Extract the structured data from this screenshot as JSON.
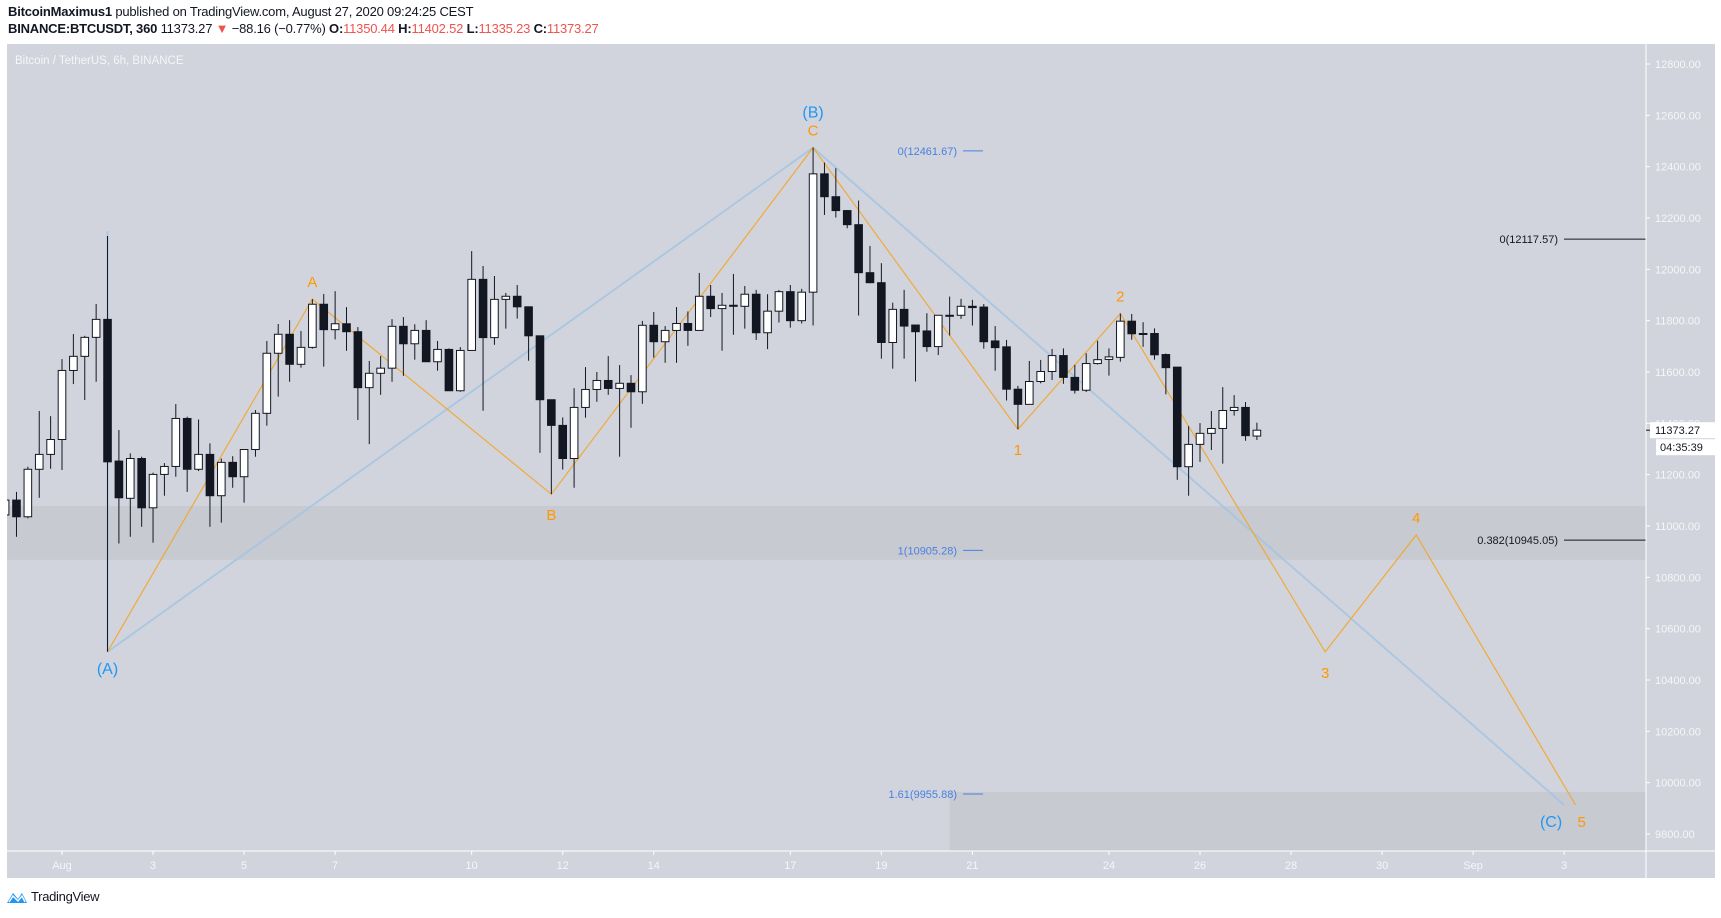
{
  "header": {
    "author": "BitcoinMaximus1",
    "published": "published on TradingView.com, August 27, 2020 09:24:25 CEST",
    "symbol": "BINANCE:BTCUSDT, 360",
    "last": "11373.27",
    "change_arrow": "▼",
    "change": "−88.16 (−0.77%)",
    "o_label": "O:",
    "o": "11350.44",
    "h_label": "H:",
    "h": "11402.52",
    "l_label": "L:",
    "l": "11335.23",
    "c_label": "C:",
    "c": "11373.27"
  },
  "footer": {
    "brand": "TradingView",
    "logo_icon": "tradingview-logo-icon"
  },
  "chart_data": {
    "type": "candlestick",
    "legend": "Bitcoin / TetherUS, 6h, BINANCE",
    "ylim": [
      9734,
      12880
    ],
    "y_ticks": [
      "12800.00",
      "12600.00",
      "12400.00",
      "12200.00",
      "12000.00",
      "11800.00",
      "11600.00",
      "11400.00",
      "11200.00",
      "11000.00",
      "10800.00",
      "10600.00",
      "10400.00",
      "10200.00",
      "10000.00",
      "9800.00"
    ],
    "x_ticks": [
      {
        "label": "Aug",
        "t": "2020-08-01T00:00"
      },
      {
        "label": "3",
        "t": "2020-08-03T00:00"
      },
      {
        "label": "5",
        "t": "2020-08-05T00:00"
      },
      {
        "label": "7",
        "t": "2020-08-07T00:00"
      },
      {
        "label": "10",
        "t": "2020-08-10T00:00"
      },
      {
        "label": "12",
        "t": "2020-08-12T00:00"
      },
      {
        "label": "14",
        "t": "2020-08-14T00:00"
      },
      {
        "label": "17",
        "t": "2020-08-17T00:00"
      },
      {
        "label": "19",
        "t": "2020-08-19T00:00"
      },
      {
        "label": "21",
        "t": "2020-08-21T00:00"
      },
      {
        "label": "24",
        "t": "2020-08-24T00:00"
      },
      {
        "label": "26",
        "t": "2020-08-26T00:00"
      },
      {
        "label": "28",
        "t": "2020-08-28T00:00"
      },
      {
        "label": "30",
        "t": "2020-08-30T00:00"
      },
      {
        "label": "Sep",
        "t": "2020-09-01T00:00"
      },
      {
        "label": "3",
        "t": "2020-09-03T00:00"
      }
    ],
    "last_price_label": "11373.27",
    "countdown": "04:35:39",
    "colors": {
      "bg": "#d1d4dc",
      "zone": "#c8cad2",
      "up": "#ffffff",
      "down": "#131722",
      "wave_minor": "#f7a21b",
      "wave_major": "#2196f3",
      "fib_blue": "#4a7fe0",
      "fib_black": "#131722"
    },
    "candles_columns": [
      "time",
      "open",
      "high",
      "low",
      "close"
    ],
    "candles": [
      [
        "2020-07-30T18:00",
        11043,
        11120,
        11020,
        11101
      ],
      [
        "2020-07-31T00:00",
        11101,
        11133,
        10958,
        11036
      ],
      [
        "2020-07-31T06:00",
        11036,
        11231,
        11030,
        11221
      ],
      [
        "2020-07-31T12:00",
        11221,
        11448,
        11110,
        11279
      ],
      [
        "2020-07-31T18:00",
        11279,
        11428,
        11223,
        11337
      ],
      [
        "2020-08-01T00:00",
        11337,
        11650,
        11218,
        11606
      ],
      [
        "2020-08-01T06:00",
        11606,
        11748,
        11553,
        11661
      ],
      [
        "2020-08-01T12:00",
        11661,
        11741,
        11491,
        11735
      ],
      [
        "2020-08-01T18:00",
        11735,
        11865,
        11562,
        11805
      ],
      [
        "2020-08-02T00:00",
        11805,
        12130,
        10510,
        11250
      ],
      [
        "2020-08-02T06:00",
        11253,
        11374,
        10932,
        11110
      ],
      [
        "2020-08-02T12:00",
        11108,
        11283,
        10958,
        11263
      ],
      [
        "2020-08-02T18:00",
        11263,
        11270,
        10997,
        11071
      ],
      [
        "2020-08-03T00:00",
        11071,
        11208,
        10935,
        11201
      ],
      [
        "2020-08-03T06:00",
        11201,
        11245,
        11118,
        11232
      ],
      [
        "2020-08-03T12:00",
        11232,
        11475,
        11192,
        11419
      ],
      [
        "2020-08-03T18:00",
        11419,
        11426,
        11133,
        11221
      ],
      [
        "2020-08-04T00:00",
        11221,
        11415,
        11214,
        11279
      ],
      [
        "2020-08-04T06:00",
        11279,
        11322,
        10997,
        11118
      ],
      [
        "2020-08-04T12:00",
        11118,
        11263,
        11013,
        11248
      ],
      [
        "2020-08-04T18:00",
        11248,
        11272,
        11149,
        11192
      ],
      [
        "2020-08-05T00:00",
        11192,
        11298,
        11091,
        11298
      ],
      [
        "2020-08-05T06:00",
        11298,
        11452,
        11270,
        11439
      ],
      [
        "2020-08-05T12:00",
        11439,
        11721,
        11391,
        11673
      ],
      [
        "2020-08-05T18:00",
        11673,
        11787,
        11504,
        11747
      ],
      [
        "2020-08-06T00:00",
        11747,
        11802,
        11562,
        11630
      ],
      [
        "2020-08-06T06:00",
        11630,
        11760,
        11617,
        11696
      ],
      [
        "2020-08-06T12:00",
        11696,
        11884,
        11691,
        11864
      ],
      [
        "2020-08-06T18:00",
        11864,
        11904,
        11621,
        11765
      ],
      [
        "2020-08-07T00:00",
        11765,
        11915,
        11727,
        11788
      ],
      [
        "2020-08-07T06:00",
        11788,
        11853,
        11683,
        11757
      ],
      [
        "2020-08-07T12:00",
        11757,
        11775,
        11413,
        11539
      ],
      [
        "2020-08-07T18:00",
        11539,
        11643,
        11319,
        11595
      ],
      [
        "2020-08-08T00:00",
        11595,
        11662,
        11511,
        11615
      ],
      [
        "2020-08-08T06:00",
        11615,
        11806,
        11562,
        11778
      ],
      [
        "2020-08-08T12:00",
        11778,
        11814,
        11585,
        11710
      ],
      [
        "2020-08-08T18:00",
        11710,
        11786,
        11648,
        11762
      ],
      [
        "2020-08-09T00:00",
        11762,
        11802,
        11640,
        11640
      ],
      [
        "2020-08-09T06:00",
        11640,
        11721,
        11605,
        11688
      ],
      [
        "2020-08-09T12:00",
        11688,
        11692,
        11527,
        11527
      ],
      [
        "2020-08-09T18:00",
        11527,
        11697,
        11523,
        11684
      ],
      [
        "2020-08-10T00:00",
        11684,
        12071,
        11684,
        11961
      ],
      [
        "2020-08-10T06:00",
        11961,
        12013,
        11449,
        11734
      ],
      [
        "2020-08-10T12:00",
        11734,
        11974,
        11706,
        11883
      ],
      [
        "2020-08-10T18:00",
        11883,
        11908,
        11769,
        11895
      ],
      [
        "2020-08-11T00:00",
        11895,
        11939,
        11808,
        11854
      ],
      [
        "2020-08-11T06:00",
        11854,
        11854,
        11644,
        11741
      ],
      [
        "2020-08-11T12:00",
        11741,
        11741,
        11285,
        11492
      ],
      [
        "2020-08-11T18:00",
        11492,
        11492,
        11124,
        11392
      ],
      [
        "2020-08-12T00:00",
        11392,
        11423,
        11220,
        11263
      ],
      [
        "2020-08-12T06:00",
        11263,
        11537,
        11149,
        11462
      ],
      [
        "2020-08-12T12:00",
        11462,
        11619,
        11422,
        11532
      ],
      [
        "2020-08-12T18:00",
        11532,
        11600,
        11484,
        11567
      ],
      [
        "2020-08-13T00:00",
        11567,
        11662,
        11511,
        11536
      ],
      [
        "2020-08-13T06:00",
        11536,
        11627,
        11270,
        11556
      ],
      [
        "2020-08-13T12:00",
        11556,
        11588,
        11383,
        11523
      ],
      [
        "2020-08-13T18:00",
        11523,
        11799,
        11476,
        11782
      ],
      [
        "2020-08-14T00:00",
        11782,
        11834,
        11656,
        11718
      ],
      [
        "2020-08-14T06:00",
        11718,
        11779,
        11636,
        11762
      ],
      [
        "2020-08-14T12:00",
        11762,
        11853,
        11636,
        11789
      ],
      [
        "2020-08-14T18:00",
        11789,
        11836,
        11702,
        11762
      ],
      [
        "2020-08-15T00:00",
        11762,
        11986,
        11762,
        11895
      ],
      [
        "2020-08-15T06:00",
        11895,
        11939,
        11814,
        11847
      ],
      [
        "2020-08-15T12:00",
        11847,
        11908,
        11683,
        11860
      ],
      [
        "2020-08-15T18:00",
        11860,
        11982,
        11745,
        11856
      ],
      [
        "2020-08-16T00:00",
        11856,
        11935,
        11769,
        11903
      ],
      [
        "2020-08-16T06:00",
        11903,
        11920,
        11725,
        11753
      ],
      [
        "2020-08-16T12:00",
        11753,
        11903,
        11689,
        11837
      ],
      [
        "2020-08-16T18:00",
        11837,
        11920,
        11793,
        11913
      ],
      [
        "2020-08-17T00:00",
        11913,
        11939,
        11773,
        11800
      ],
      [
        "2020-08-17T06:00",
        11800,
        11924,
        11789,
        11911
      ],
      [
        "2020-08-17T12:00",
        11911,
        12474,
        11781,
        12372
      ],
      [
        "2020-08-17T18:00",
        12372,
        12416,
        12212,
        12283
      ],
      [
        "2020-08-18T00:00",
        12283,
        12394,
        12202,
        12229
      ],
      [
        "2020-08-18T06:00",
        12229,
        12231,
        12160,
        12174
      ],
      [
        "2020-08-18T12:00",
        12174,
        12268,
        11820,
        11987
      ],
      [
        "2020-08-18T18:00",
        11987,
        12091,
        11946,
        11948
      ],
      [
        "2020-08-19T00:00",
        11948,
        12024,
        11652,
        11715
      ],
      [
        "2020-08-19T06:00",
        11715,
        11870,
        11613,
        11844
      ],
      [
        "2020-08-19T12:00",
        11844,
        11920,
        11652,
        11779
      ],
      [
        "2020-08-19T18:00",
        11783,
        11783,
        11563,
        11757
      ],
      [
        "2020-08-20T00:00",
        11760,
        11829,
        11679,
        11699
      ],
      [
        "2020-08-20T06:00",
        11699,
        11821,
        11666,
        11821
      ],
      [
        "2020-08-20T12:00",
        11821,
        11894,
        11742,
        11821
      ],
      [
        "2020-08-20T18:00",
        11821,
        11885,
        11807,
        11856
      ],
      [
        "2020-08-21T00:00",
        11856,
        11881,
        11781,
        11851
      ],
      [
        "2020-08-21T06:00",
        11853,
        11865,
        11691,
        11718
      ],
      [
        "2020-08-21T12:00",
        11721,
        11779,
        11605,
        11695
      ],
      [
        "2020-08-21T18:00",
        11698,
        11725,
        11489,
        11533
      ],
      [
        "2020-08-22T00:00",
        11533,
        11546,
        11377,
        11474
      ],
      [
        "2020-08-22T06:00",
        11474,
        11643,
        11474,
        11563
      ],
      [
        "2020-08-22T12:00",
        11563,
        11647,
        11556,
        11602
      ],
      [
        "2020-08-22T18:00",
        11602,
        11690,
        11569,
        11664
      ],
      [
        "2020-08-23T00:00",
        11664,
        11692,
        11554,
        11579
      ],
      [
        "2020-08-23T06:00",
        11579,
        11628,
        11516,
        11529
      ],
      [
        "2020-08-23T12:00",
        11529,
        11673,
        11522,
        11633
      ],
      [
        "2020-08-23T18:00",
        11633,
        11722,
        11629,
        11648
      ],
      [
        "2020-08-24T00:00",
        11649,
        11692,
        11586,
        11659
      ],
      [
        "2020-08-24T06:00",
        11657,
        11828,
        11640,
        11798
      ],
      [
        "2020-08-24T12:00",
        11798,
        11826,
        11726,
        11749
      ],
      [
        "2020-08-24T18:00",
        11750,
        11794,
        11698,
        11750
      ],
      [
        "2020-08-25T00:00",
        11750,
        11770,
        11648,
        11667
      ],
      [
        "2020-08-25T06:00",
        11668,
        11672,
        11513,
        11617
      ],
      [
        "2020-08-25T12:00",
        11619,
        11619,
        11180,
        11231
      ],
      [
        "2020-08-25T18:00",
        11231,
        11389,
        11118,
        11318
      ],
      [
        "2020-08-26T00:00",
        11318,
        11401,
        11250,
        11361
      ],
      [
        "2020-08-26T06:00",
        11361,
        11448,
        11296,
        11380
      ],
      [
        "2020-08-26T12:00",
        11380,
        11541,
        11243,
        11450
      ],
      [
        "2020-08-26T18:00",
        11450,
        11510,
        11430,
        11462
      ],
      [
        "2020-08-27T00:00",
        11462,
        11483,
        11332,
        11352
      ],
      [
        "2020-08-27T06:00",
        11350.44,
        11402.52,
        11335.23,
        11373.27
      ]
    ],
    "wave_major": [
      {
        "label": "(A)",
        "t": "2020-08-02T00:00",
        "price": 10510,
        "pos": "below"
      },
      {
        "label": "(B)",
        "t": "2020-08-17T12:00",
        "price": 12474,
        "pos": "above"
      },
      {
        "label": "(C)",
        "t": "2020-09-03T00:00",
        "price": 9913,
        "pos": "below"
      }
    ],
    "wave_minor": [
      {
        "label": "",
        "t": "2020-08-02T00:00",
        "price": 10510,
        "pos": "none"
      },
      {
        "label": "A",
        "t": "2020-08-06T12:00",
        "price": 11884,
        "pos": "above"
      },
      {
        "label": "B",
        "t": "2020-08-11T18:00",
        "price": 11124,
        "pos": "below"
      },
      {
        "label": "C",
        "t": "2020-08-17T12:00",
        "price": 12474,
        "pos": "above"
      },
      {
        "label": "1",
        "t": "2020-08-22T00:00",
        "price": 11377,
        "pos": "below"
      },
      {
        "label": "2",
        "t": "2020-08-24T06:00",
        "price": 11828,
        "pos": "above"
      },
      {
        "label": "3",
        "t": "2020-08-28T18:00",
        "price": 10510,
        "pos": "below"
      },
      {
        "label": "4",
        "t": "2020-08-30T18:00",
        "price": 10965,
        "pos": "above"
      },
      {
        "label": "5",
        "t": "2020-09-03T06:00",
        "price": 9913,
        "pos": "below"
      }
    ],
    "fib_blue": [
      {
        "label": "0(12461.67)",
        "price": 12461.67
      },
      {
        "label": "1(10905.28)",
        "price": 10905.28
      },
      {
        "label": "1.61(9955.88)",
        "price": 9955.88
      }
    ],
    "fib_black": [
      {
        "label": "0(12117.57)",
        "price": 12117.57
      },
      {
        "label": "0.382(10945.05)",
        "price": 10945.05
      }
    ],
    "zones": [
      {
        "from_price": 11078,
        "to_price": 10868,
        "from_t": "2020-07-30T00:00"
      },
      {
        "from_price": 9964,
        "to_price": 9734,
        "from_t": "2020-08-20T12:00"
      }
    ]
  }
}
